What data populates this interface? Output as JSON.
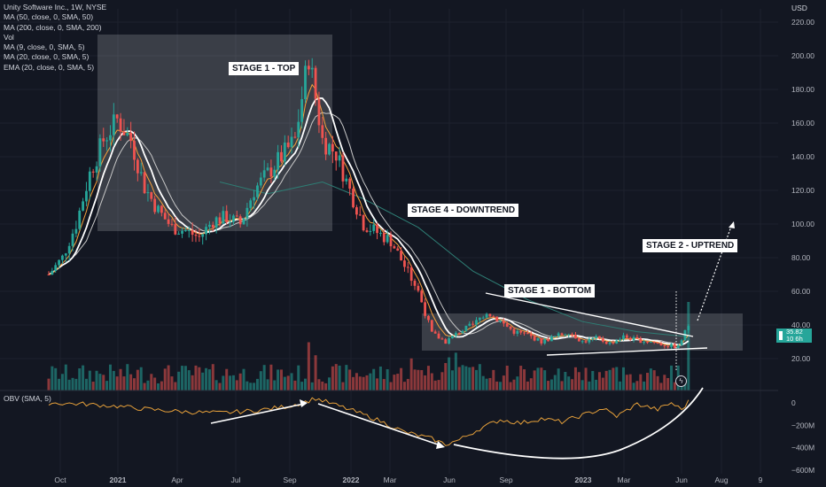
{
  "legend": {
    "title": "Unity Software Inc., 1W, NYSE",
    "items": [
      "MA (50, close, 0, SMA, 50)",
      "MA (200, close, 0, SMA, 200)",
      "Vol",
      "MA (9, close, 0, SMA, 5)",
      "MA (20, close, 0, SMA, 5)",
      "EMA (20, close, 0, SMA, 5)"
    ],
    "obv": "OBV (SMA, 5)",
    "currency": "USD"
  },
  "annotations": {
    "stage1_top": "STAGE 1 - TOP",
    "stage4": "STAGE 4 - DOWNTREND",
    "stage1_bottom": "STAGE 1 - BOTTOM",
    "stage2": "STAGE 2 - UPTREND"
  },
  "badge": {
    "price": "35.82",
    "sub": "10 6h"
  },
  "colors": {
    "background": "#131722",
    "up": "#26a69a",
    "down": "#ef5350",
    "grid": "#1e222d",
    "ma50": "#2e7d74",
    "ma200": "#d8d8d8",
    "ema": "#f7a13b",
    "obv": "#e6a03a"
  },
  "chart_data": {
    "type": "candlestick",
    "title": "Unity Software Inc., 1W, NYSE",
    "price_axis": {
      "ticks": [
        "220.00",
        "200.00",
        "180.00",
        "160.00",
        "140.00",
        "120.00",
        "100.00",
        "80.00",
        "60.00",
        "40.00",
        "20.00"
      ],
      "range": [
        0,
        230
      ]
    },
    "obv_axis": {
      "ticks": [
        "0",
        "−200M",
        "−400M",
        "−600M"
      ],
      "range": [
        -620,
        60
      ]
    },
    "time_axis": {
      "labels": [
        "Oct",
        "2021",
        "Apr",
        "Jul",
        "Sep",
        "2022",
        "Mar",
        "Jun",
        "Sep",
        "2023",
        "Mar",
        "Jun",
        "Aug",
        "9"
      ]
    },
    "anchors": [
      {
        "x": 0,
        "c": 70
      },
      {
        "x": 4,
        "c": 80
      },
      {
        "x": 8,
        "c": 100
      },
      {
        "x": 12,
        "c": 130
      },
      {
        "x": 16,
        "c": 150
      },
      {
        "x": 20,
        "c": 162
      },
      {
        "x": 24,
        "c": 150
      },
      {
        "x": 28,
        "c": 122
      },
      {
        "x": 32,
        "c": 108
      },
      {
        "x": 36,
        "c": 98
      },
      {
        "x": 40,
        "c": 96
      },
      {
        "x": 44,
        "c": 92
      },
      {
        "x": 48,
        "c": 102
      },
      {
        "x": 52,
        "c": 104
      },
      {
        "x": 56,
        "c": 100
      },
      {
        "x": 60,
        "c": 120
      },
      {
        "x": 64,
        "c": 130
      },
      {
        "x": 68,
        "c": 140
      },
      {
        "x": 72,
        "c": 150
      },
      {
        "x": 76,
        "c": 200
      },
      {
        "x": 80,
        "c": 150
      },
      {
        "x": 84,
        "c": 142
      },
      {
        "x": 88,
        "c": 120
      },
      {
        "x": 92,
        "c": 100
      },
      {
        "x": 96,
        "c": 95
      },
      {
        "x": 100,
        "c": 90
      },
      {
        "x": 104,
        "c": 75
      },
      {
        "x": 108,
        "c": 60
      },
      {
        "x": 112,
        "c": 35
      },
      {
        "x": 116,
        "c": 30
      },
      {
        "x": 120,
        "c": 36
      },
      {
        "x": 124,
        "c": 40
      },
      {
        "x": 128,
        "c": 48
      },
      {
        "x": 132,
        "c": 42
      },
      {
        "x": 136,
        "c": 36
      },
      {
        "x": 140,
        "c": 34
      },
      {
        "x": 144,
        "c": 30
      },
      {
        "x": 148,
        "c": 33
      },
      {
        "x": 152,
        "c": 36
      },
      {
        "x": 156,
        "c": 30
      },
      {
        "x": 160,
        "c": 32
      },
      {
        "x": 164,
        "c": 29
      },
      {
        "x": 168,
        "c": 33
      },
      {
        "x": 172,
        "c": 31
      },
      {
        "x": 176,
        "c": 30
      },
      {
        "x": 180,
        "c": 28
      },
      {
        "x": 184,
        "c": 27
      },
      {
        "x": 187,
        "c": 40
      }
    ],
    "ma50_anchors": [
      {
        "x": 50,
        "c": 125
      },
      {
        "x": 64,
        "c": 118
      },
      {
        "x": 80,
        "c": 125
      },
      {
        "x": 92,
        "c": 115
      },
      {
        "x": 108,
        "c": 98
      },
      {
        "x": 124,
        "c": 72
      },
      {
        "x": 140,
        "c": 55
      },
      {
        "x": 156,
        "c": 42
      },
      {
        "x": 172,
        "c": 36
      },
      {
        "x": 187,
        "c": 33
      }
    ],
    "obv_anchors": [
      {
        "x": 0,
        "c": 0
      },
      {
        "x": 10,
        "c": -10
      },
      {
        "x": 20,
        "c": -30
      },
      {
        "x": 30,
        "c": -60
      },
      {
        "x": 40,
        "c": -80
      },
      {
        "x": 50,
        "c": -90
      },
      {
        "x": 60,
        "c": -70
      },
      {
        "x": 70,
        "c": -30
      },
      {
        "x": 74,
        "c": 0
      },
      {
        "x": 78,
        "c": 40
      },
      {
        "x": 82,
        "c": 0
      },
      {
        "x": 88,
        "c": -60
      },
      {
        "x": 96,
        "c": -150
      },
      {
        "x": 104,
        "c": -260
      },
      {
        "x": 112,
        "c": -320
      },
      {
        "x": 116,
        "c": -370
      },
      {
        "x": 120,
        "c": -330
      },
      {
        "x": 126,
        "c": -230
      },
      {
        "x": 132,
        "c": -150
      },
      {
        "x": 138,
        "c": -180
      },
      {
        "x": 144,
        "c": -140
      },
      {
        "x": 150,
        "c": -170
      },
      {
        "x": 156,
        "c": -110
      },
      {
        "x": 162,
        "c": -50
      },
      {
        "x": 166,
        "c": -120
      },
      {
        "x": 172,
        "c": -10
      },
      {
        "x": 178,
        "c": -60
      },
      {
        "x": 182,
        "c": 0
      },
      {
        "x": 185,
        "c": -60
      },
      {
        "x": 187,
        "c": 10
      }
    ],
    "series": [
      {
        "name": "MA (50, close, 0, SMA, 50)"
      },
      {
        "name": "MA (200, close, 0, SMA, 200)"
      },
      {
        "name": "Vol"
      },
      {
        "name": "EMA (20, close, 0, SMA, 5)"
      },
      {
        "name": "OBV (SMA, 5)"
      }
    ]
  }
}
